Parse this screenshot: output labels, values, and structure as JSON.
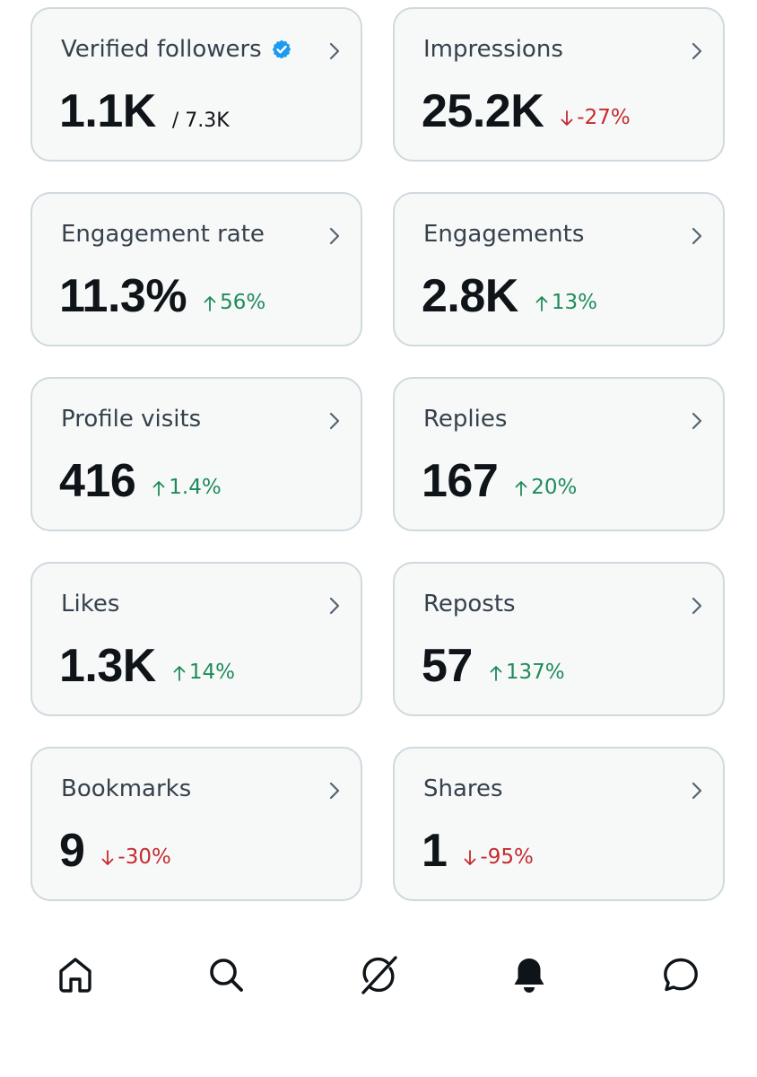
{
  "colors": {
    "positive": "#1f8b5a",
    "negative": "#c62a2f",
    "verified_badge": "#1d9bf0",
    "card_bg": "#f7f9f9",
    "card_border": "#cfd9de"
  },
  "metrics": [
    {
      "label": "Verified followers",
      "value": "1.1K",
      "sub": "/ 7.3K",
      "badge": "verified-badge-icon"
    },
    {
      "label": "Impressions",
      "value": "25.2K",
      "change": "-27%",
      "direction": "down"
    },
    {
      "label": "Engagement rate",
      "value": "11.3%",
      "change": "56%",
      "direction": "up"
    },
    {
      "label": "Engagements",
      "value": "2.8K",
      "change": "13%",
      "direction": "up"
    },
    {
      "label": "Profile visits",
      "value": "416",
      "change": "1.4%",
      "direction": "up"
    },
    {
      "label": "Replies",
      "value": "167",
      "change": "20%",
      "direction": "up"
    },
    {
      "label": "Likes",
      "value": "1.3K",
      "change": "14%",
      "direction": "up"
    },
    {
      "label": "Reposts",
      "value": "57",
      "change": "137%",
      "direction": "up"
    },
    {
      "label": "Bookmarks",
      "value": "9",
      "change": "-30%",
      "direction": "down"
    },
    {
      "label": "Shares",
      "value": "1",
      "change": "-95%",
      "direction": "down"
    }
  ],
  "nav": {
    "items": [
      "home-icon",
      "search-icon",
      "grok-icon",
      "notifications-bell-icon",
      "messages-icon"
    ]
  }
}
